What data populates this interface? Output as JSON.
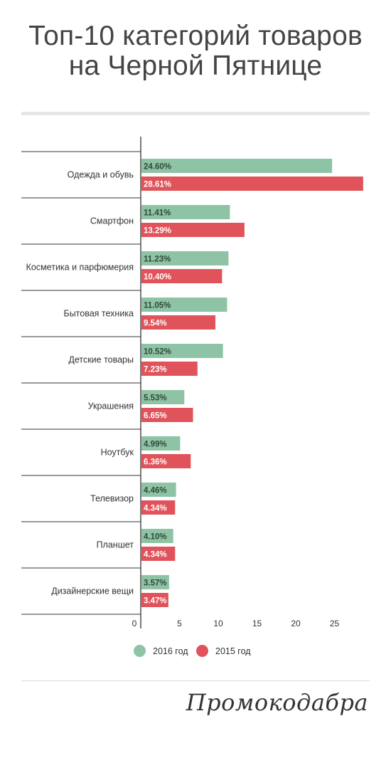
{
  "title": {
    "line1": "Топ-10 категорий товаров",
    "line2": "на Черной Пятнице"
  },
  "brand": "Промокодабра",
  "colors": {
    "series_2016": "#8fc3a5",
    "series_2015": "#e0535a",
    "label_2016": "#2f4a3a",
    "label_2015": "#ffffff",
    "axis": "#333333",
    "rule": "#e6e6e6"
  },
  "legend": {
    "items": [
      {
        "label": "2016 год",
        "color": "#8fc3a5"
      },
      {
        "label": "2015 год",
        "color": "#e0535a"
      }
    ]
  },
  "chart_data": {
    "type": "bar",
    "orientation": "horizontal",
    "title": "Топ-10 категорий товаров на Черной Пятнице",
    "xlabel": "",
    "ylabel": "",
    "xlim": [
      0,
      29
    ],
    "xticks": [
      0,
      5,
      10,
      15,
      20,
      25
    ],
    "grid": false,
    "legend_position": "bottom",
    "categories": [
      "Одежда и обувь",
      "Смартфон",
      "Косметика и парфюмерия",
      "Бытовая техника",
      "Детские товары",
      "Украшения",
      "Ноутбук",
      "Телевизор",
      "Планшет",
      "Дизайнерские вещи"
    ],
    "series": [
      {
        "name": "2016 год",
        "values": [
          24.6,
          11.41,
          11.23,
          11.05,
          10.52,
          5.53,
          4.99,
          4.46,
          4.1,
          3.57
        ],
        "labels": [
          "24.60%",
          "11.41%",
          "11.23%",
          "11.05%",
          "10.52%",
          "5.53%",
          "4.99%",
          "4.46%",
          "4.10%",
          "3.57%"
        ]
      },
      {
        "name": "2015 год",
        "values": [
          28.61,
          13.29,
          10.4,
          9.54,
          7.23,
          6.65,
          6.36,
          4.34,
          4.34,
          3.47
        ],
        "labels": [
          "28.61%",
          "13.29%",
          "10.40%",
          "9.54%",
          "7.23%",
          "6.65%",
          "6.36%",
          "4.34%",
          "4.34%",
          "3.47%"
        ]
      }
    ]
  }
}
